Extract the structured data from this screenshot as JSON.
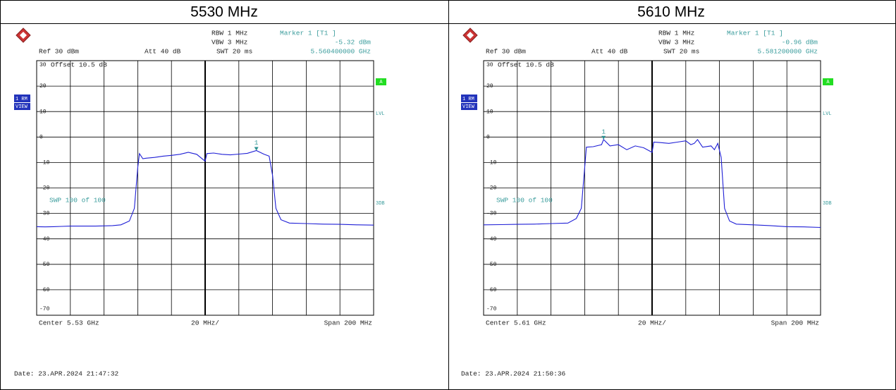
{
  "chart_data": [
    {
      "type": "line",
      "title": "5530 MHz",
      "x": [
        5430,
        5435,
        5440,
        5445,
        5450,
        5455,
        5460,
        5465,
        5470,
        5475,
        5480,
        5485,
        5488,
        5490,
        5491,
        5493,
        5495,
        5500,
        5505,
        5510,
        5515,
        5520,
        5525,
        5530,
        5531,
        5535,
        5540,
        5545,
        5550,
        5555,
        5560.4,
        5565,
        5568,
        5570,
        5572,
        5575,
        5580,
        5590,
        5600,
        5610,
        5620,
        5630
      ],
      "values": [
        -35.2,
        -35.3,
        -35.2,
        -35.1,
        -35.0,
        -35.0,
        -35.0,
        -35.0,
        -34.9,
        -34.8,
        -34.5,
        -33,
        -28,
        -12,
        -6.5,
        -8.5,
        -8.3,
        -8,
        -7.5,
        -7.2,
        -6.8,
        -6,
        -6.8,
        -9.5,
        -6.5,
        -6.3,
        -6.8,
        -7,
        -6.7,
        -6.4,
        -5.32,
        -6.8,
        -7.5,
        -15,
        -28,
        -32.5,
        -33.8,
        -34,
        -34.2,
        -34.3,
        -34.5,
        -34.6
      ],
      "color": "#1f1fd6",
      "xlim": [
        5430,
        5630
      ],
      "ylim": [
        -70,
        30
      ],
      "yticks": [
        30,
        20,
        10,
        0,
        -10,
        -20,
        -30,
        -40,
        -50,
        -60,
        -70
      ],
      "grid": true,
      "marker": {
        "name": "Marker 1 [T1 ]",
        "label": "1",
        "x": 5560.4,
        "y": -5.32,
        "x_label": "5.560400000 GHz",
        "y_label": "-5.32 dBm"
      },
      "annotations": {
        "rbw": "RBW 1 MHz",
        "vbw": "VBW 3 MHz",
        "swt": "SWT 20 ms",
        "ref": "Ref  30 dBm",
        "att": "Att  40 dB",
        "offset": "Offset  10.5 dB",
        "trace_mode": "1 RM",
        "view": "VIEW",
        "a": "A",
        "lvl": "LVL",
        "db3": "3DB",
        "sweep": "SWP   100 of  100",
        "center": "Center 5.53 GHz",
        "span_div": "20 MHz/",
        "span": "Span 200 MHz",
        "date": "Date: 23.APR.2024  21:47:32"
      }
    },
    {
      "type": "line",
      "title": "5610 MHz",
      "x": [
        5510,
        5520,
        5530,
        5540,
        5550,
        5560,
        5565,
        5568,
        5570,
        5571,
        5575,
        5580,
        5581.2,
        5585,
        5590,
        5595,
        5600,
        5605,
        5610,
        5611,
        5615,
        5620,
        5625,
        5630,
        5633,
        5635,
        5637,
        5640,
        5645,
        5647,
        5649,
        5651,
        5653,
        5656,
        5660,
        5670,
        5680,
        5690,
        5700,
        5710
      ],
      "values": [
        -34.5,
        -34.4,
        -34.3,
        -34.2,
        -34,
        -33.8,
        -32,
        -28,
        -12,
        -4,
        -3.8,
        -3,
        -0.96,
        -3.5,
        -3,
        -5,
        -3.5,
        -4.2,
        -6,
        -2,
        -2.2,
        -2.5,
        -2,
        -1.5,
        -3,
        -2.5,
        -1,
        -4,
        -3.5,
        -5,
        -2.5,
        -8,
        -28,
        -33,
        -34.2,
        -34.5,
        -34.8,
        -35.2,
        -35.3,
        -35.5
      ],
      "color": "#1f1fd6",
      "xlim": [
        5510,
        5710
      ],
      "ylim": [
        -70,
        30
      ],
      "yticks": [
        30,
        20,
        10,
        0,
        -10,
        -20,
        -30,
        -40,
        -50,
        -60,
        -70
      ],
      "grid": true,
      "marker": {
        "name": "Marker 1 [T1 ]",
        "label": "1",
        "x": 5581.2,
        "y": -0.96,
        "x_label": "5.581200000 GHz",
        "y_label": "-0.96 dBm"
      },
      "annotations": {
        "rbw": "RBW 1 MHz",
        "vbw": "VBW 3 MHz",
        "swt": "SWT 20 ms",
        "ref": "Ref  30 dBm",
        "att": "Att  40 dB",
        "offset": "Offset  10.5 dB",
        "trace_mode": "1 RM",
        "view": "VIEW",
        "a": "A",
        "lvl": "LVL",
        "db3": "3DB",
        "sweep": "SWP   100 of  100",
        "center": "Center 5.61 GHz",
        "span_div": "20 MHz/",
        "span": "Span 200 MHz",
        "date": "Date: 23.APR.2024  21:50:36"
      }
    }
  ]
}
